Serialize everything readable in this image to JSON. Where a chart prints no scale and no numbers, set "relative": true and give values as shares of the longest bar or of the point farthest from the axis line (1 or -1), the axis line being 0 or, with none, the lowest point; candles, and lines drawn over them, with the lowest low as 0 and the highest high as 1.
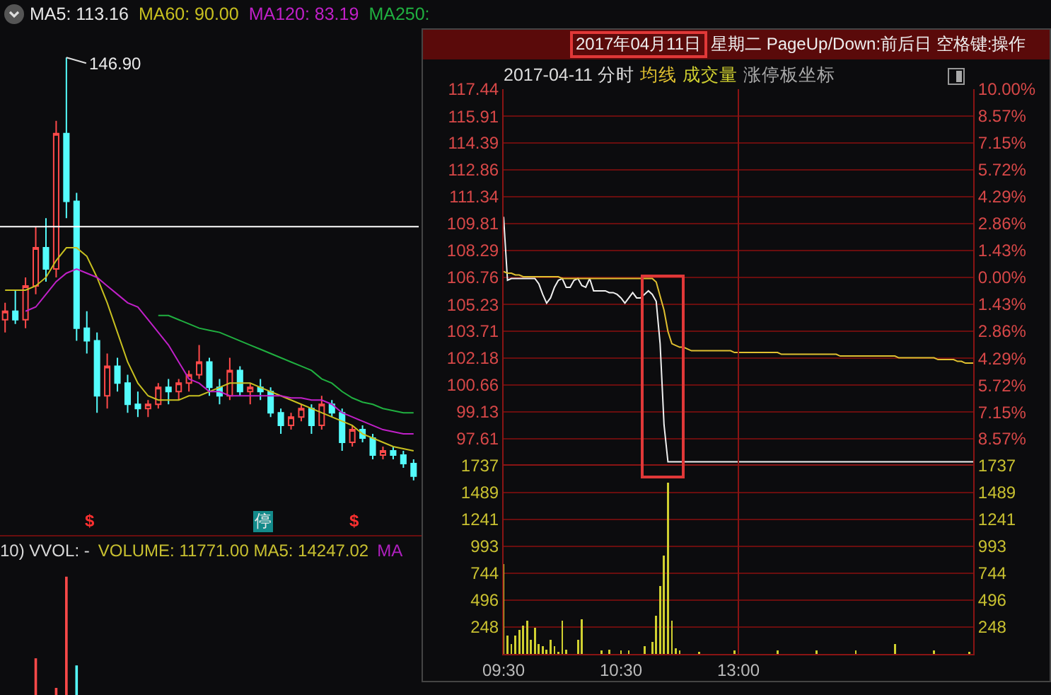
{
  "chart_data": [
    {
      "type": "candlestick",
      "title": "MA5: 113.16",
      "relative": true,
      "categories": [
        null,
        null,
        null,
        null,
        null,
        null,
        null,
        null,
        null,
        null,
        null,
        null,
        null,
        null,
        null,
        null,
        null,
        null,
        null,
        null,
        null,
        null,
        null,
        null,
        null,
        null,
        null,
        null,
        null,
        null,
        null,
        null,
        null,
        null,
        null,
        null,
        null,
        null,
        null,
        null,
        null
      ],
      "ohlc": [
        [
          0.38,
          0.42,
          0.35,
          0.4
        ],
        [
          0.4,
          0.45,
          0.37,
          0.38
        ],
        [
          0.38,
          0.48,
          0.36,
          0.46
        ],
        [
          0.46,
          0.6,
          0.44,
          0.55
        ],
        [
          0.55,
          0.62,
          0.47,
          0.5
        ],
        [
          0.5,
          0.85,
          0.48,
          0.82
        ],
        [
          0.82,
          1.0,
          0.62,
          0.66
        ],
        [
          0.66,
          0.68,
          0.33,
          0.36
        ],
        [
          0.36,
          0.4,
          0.3,
          0.33
        ],
        [
          0.33,
          0.35,
          0.16,
          0.2
        ],
        [
          0.2,
          0.3,
          0.17,
          0.27
        ],
        [
          0.27,
          0.29,
          0.21,
          0.23
        ],
        [
          0.23,
          0.25,
          0.16,
          0.18
        ],
        [
          0.18,
          0.21,
          0.15,
          0.17
        ],
        [
          0.17,
          0.19,
          0.15,
          0.18
        ],
        [
          0.18,
          0.23,
          0.17,
          0.22
        ],
        [
          0.22,
          0.24,
          0.18,
          0.21
        ],
        [
          0.21,
          0.24,
          0.19,
          0.23
        ],
        [
          0.23,
          0.26,
          0.21,
          0.25
        ],
        [
          0.25,
          0.32,
          0.24,
          0.28
        ],
        [
          0.28,
          0.29,
          0.2,
          0.22
        ],
        [
          0.22,
          0.24,
          0.18,
          0.2
        ],
        [
          0.2,
          0.29,
          0.19,
          0.26
        ],
        [
          0.26,
          0.27,
          0.2,
          0.21
        ],
        [
          0.21,
          0.23,
          0.18,
          0.22
        ],
        [
          0.22,
          0.24,
          0.19,
          0.21
        ],
        [
          0.21,
          0.22,
          0.15,
          0.16
        ],
        [
          0.16,
          0.17,
          0.11,
          0.13
        ],
        [
          0.13,
          0.16,
          0.12,
          0.15
        ],
        [
          0.15,
          0.18,
          0.14,
          0.17
        ],
        [
          0.17,
          0.18,
          0.11,
          0.13
        ],
        [
          0.13,
          0.2,
          0.12,
          0.18
        ],
        [
          0.18,
          0.19,
          0.15,
          0.16
        ],
        [
          0.16,
          0.17,
          0.07,
          0.09
        ],
        [
          0.09,
          0.13,
          0.08,
          0.12
        ],
        [
          0.12,
          0.13,
          0.09,
          0.1
        ],
        [
          0.1,
          0.11,
          0.05,
          0.06
        ],
        [
          0.06,
          0.08,
          0.05,
          0.07
        ],
        [
          0.07,
          0.08,
          0.05,
          0.06
        ],
        [
          0.06,
          0.07,
          0.03,
          0.04
        ],
        [
          0.04,
          0.05,
          0.0,
          0.01
        ]
      ],
      "colors": [
        "#ff4a4a",
        "#54fcfc",
        "#ff4a4a",
        "#ff4a4a",
        "#54fcfc",
        "#ff4a4a",
        "#54fcfc",
        "#54fcfc",
        "#54fcfc",
        "#54fcfc",
        "#ff4a4a",
        "#54fcfc",
        "#54fcfc",
        "#54fcfc",
        "#ff4a4a",
        "#ff4a4a",
        "#54fcfc",
        "#ff4a4a",
        "#ff4a4a",
        "#ff4a4a",
        "#54fcfc",
        "#54fcfc",
        "#ff4a4a",
        "#54fcfc",
        "#ff4a4a",
        "#54fcfc",
        "#54fcfc",
        "#54fcfc",
        "#ff4a4a",
        "#ff4a4a",
        "#54fcfc",
        "#ff4a4a",
        "#54fcfc",
        "#54fcfc",
        "#ff4a4a",
        "#54fcfc",
        "#54fcfc",
        "#ff4a4a",
        "#54fcfc",
        "#54fcfc",
        "#54fcfc"
      ],
      "series": [
        {
          "type": "line",
          "name": "MA60: 90.00",
          "color": "#c8c020",
          "values": [
            0.45,
            0.45,
            0.45,
            0.46,
            0.48,
            0.52,
            0.55,
            0.55,
            0.53,
            0.48,
            0.42,
            0.35,
            0.28,
            0.23,
            0.2,
            0.19,
            0.19,
            0.19,
            0.2,
            0.2,
            0.21,
            0.22,
            0.23,
            0.23,
            0.23,
            0.22,
            0.21,
            0.2,
            0.19,
            0.18,
            0.17,
            0.16,
            0.15,
            0.14,
            0.13,
            0.11,
            0.1,
            0.09,
            0.08,
            0.075,
            0.07
          ]
        },
        {
          "type": "line",
          "name": "MA120: 83.19",
          "color": "#c020c8",
          "values": [
            null,
            null,
            0.4,
            0.41,
            0.44,
            0.47,
            0.49,
            0.5,
            0.49,
            0.48,
            0.46,
            0.44,
            0.42,
            0.41,
            0.38,
            0.35,
            0.32,
            0.28,
            0.24,
            0.23,
            0.21,
            0.21,
            0.2,
            0.2,
            0.2,
            0.2,
            0.2,
            0.2,
            0.195,
            0.195,
            0.19,
            0.19,
            0.18,
            0.16,
            0.15,
            0.14,
            0.13,
            0.12,
            0.115,
            0.11,
            0.11
          ]
        },
        {
          "type": "line",
          "name": "MA250:",
          "color": "#20b040",
          "values": [
            null,
            null,
            null,
            null,
            null,
            null,
            null,
            null,
            null,
            null,
            null,
            null,
            null,
            null,
            null,
            0.39,
            0.39,
            0.38,
            0.37,
            0.36,
            0.355,
            0.35,
            0.34,
            0.33,
            0.32,
            0.31,
            0.3,
            0.29,
            0.28,
            0.27,
            0.26,
            0.24,
            0.23,
            0.21,
            0.195,
            0.185,
            0.18,
            0.17,
            0.165,
            0.16,
            0.16
          ]
        }
      ],
      "ref_lines": [
        {
          "axis": "y",
          "value": 0.6,
          "color": "#ffffff"
        }
      ],
      "annotations": [
        "146.90",
        "$",
        "停",
        "$"
      ]
    },
    {
      "type": "line",
      "title": "2017年04月11日 星期二 PageUp/Down:前后日 空格键:操作",
      "subtitle": "2017-04-11 分时",
      "tick_labels": "y",
      "categories": [
        "09:30",
        null,
        null,
        null,
        null,
        null,
        null,
        null,
        null,
        null,
        null,
        null,
        null,
        null,
        null,
        null,
        null,
        null,
        null,
        null,
        null,
        null,
        null,
        null,
        null,
        null,
        null,
        null,
        null,
        null,
        "10:30",
        null,
        null,
        null,
        null,
        null,
        null,
        null,
        null,
        null,
        null,
        null,
        null,
        null,
        null,
        null,
        null,
        null,
        null,
        null,
        null,
        null,
        null,
        null,
        null,
        null,
        null,
        null,
        null,
        null,
        "13:00",
        null,
        null,
        null,
        null,
        null,
        null,
        null,
        null,
        null,
        null,
        null,
        null,
        null,
        null,
        null,
        null,
        null,
        null,
        null,
        null,
        null,
        null,
        null,
        null,
        null,
        null,
        null,
        null,
        null,
        null,
        null,
        null,
        null,
        null,
        null,
        null,
        null,
        null,
        null,
        null,
        null,
        null,
        null,
        null,
        null,
        null,
        null,
        null,
        null,
        null,
        null,
        null,
        null,
        null,
        null,
        null,
        null,
        null,
        null,
        null
      ],
      "ylim": [
        96.08,
        117.44
      ],
      "yticks": [
        97.61,
        99.13,
        100.66,
        102.18,
        103.71,
        105.23,
        106.76,
        108.29,
        109.81,
        111.34,
        112.86,
        114.39,
        115.91,
        117.44
      ],
      "y2lim": [
        -10,
        10
      ],
      "y2ticks": [
        {
          "value": -8.57,
          "label": "8.57%"
        },
        {
          "value": -7.15,
          "label": "7.15%"
        },
        {
          "value": -5.72,
          "label": "5.72%"
        },
        {
          "value": -4.29,
          "label": "4.29%"
        },
        {
          "value": -2.86,
          "label": "2.86%"
        },
        {
          "value": -1.43,
          "label": "1.43%"
        },
        {
          "value": 0,
          "label": "0.00%"
        },
        {
          "value": 1.43,
          "label": "1.43%"
        },
        {
          "value": 2.86,
          "label": "2.86%"
        },
        {
          "value": 4.29,
          "label": "4.29%"
        },
        {
          "value": 5.72,
          "label": "5.72%"
        },
        {
          "value": 7.15,
          "label": "7.15%"
        },
        {
          "value": 8.57,
          "label": "8.57%"
        },
        {
          "value": 10,
          "label": "10.00%"
        }
      ],
      "grid": "y",
      "ref_lines": [
        {
          "axis": "x",
          "value": "13:00",
          "color": "#8a1414"
        }
      ],
      "series": [
        {
          "type": "line",
          "color": "#f0f0f0",
          "values": [
            110.2,
            106.6,
            106.7,
            106.7,
            106.7,
            106.7,
            106.7,
            106.7,
            106.7,
            106.4,
            105.8,
            105.3,
            105.6,
            106.2,
            106.6,
            106.7,
            106.2,
            106.2,
            106.6,
            106.7,
            106.3,
            106.2,
            106.7,
            106.0,
            106.0,
            106.0,
            106.0,
            105.9,
            105.9,
            105.8,
            105.6,
            105.3,
            105.6,
            105.9,
            105.6,
            105.6,
            105.8,
            106.0,
            105.8,
            105.4,
            103.0,
            98.4,
            96.3,
            96.3,
            96.3,
            96.3,
            96.3,
            96.3,
            96.3,
            96.3,
            96.3,
            96.3,
            96.3,
            96.3,
            96.3,
            96.3,
            96.3,
            96.3,
            96.3,
            96.3,
            96.3,
            96.3,
            96.3,
            96.3,
            96.3,
            96.3,
            96.3,
            96.3,
            96.3,
            96.3,
            96.3,
            96.3,
            96.3,
            96.3,
            96.3,
            96.3,
            96.3,
            96.3,
            96.3,
            96.3,
            96.3,
            96.3,
            96.3,
            96.3,
            96.3,
            96.3,
            96.3,
            96.3,
            96.3,
            96.3,
            96.3,
            96.3,
            96.3,
            96.3,
            96.3,
            96.3,
            96.3,
            96.3,
            96.3,
            96.3,
            96.3,
            96.3,
            96.3,
            96.3,
            96.3,
            96.3,
            96.3,
            96.3,
            96.3,
            96.3,
            96.3,
            96.3,
            96.3,
            96.3,
            96.3,
            96.3,
            96.3,
            96.3,
            96.3,
            96.3,
            96.3
          ]
        },
        {
          "type": "line",
          "name": "均线",
          "color": "#e0c030",
          "values": [
            107.1,
            107.0,
            107.0,
            106.9,
            106.9,
            106.8,
            106.8,
            106.8,
            106.8,
            106.8,
            106.8,
            106.8,
            106.8,
            106.8,
            106.8,
            106.7,
            106.7,
            106.7,
            106.7,
            106.7,
            106.7,
            106.7,
            106.7,
            106.7,
            106.7,
            106.7,
            106.7,
            106.7,
            106.7,
            106.7,
            106.7,
            106.7,
            106.7,
            106.7,
            106.7,
            106.7,
            106.7,
            106.7,
            106.7,
            106.5,
            105.7,
            104.9,
            103.7,
            103.0,
            102.9,
            102.8,
            102.8,
            102.7,
            102.6,
            102.6,
            102.6,
            102.6,
            102.6,
            102.6,
            102.6,
            102.6,
            102.6,
            102.6,
            102.6,
            102.5,
            102.5,
            102.5,
            102.5,
            102.5,
            102.5,
            102.5,
            102.5,
            102.5,
            102.5,
            102.5,
            102.5,
            102.4,
            102.4,
            102.4,
            102.4,
            102.4,
            102.4,
            102.4,
            102.4,
            102.4,
            102.4,
            102.4,
            102.4,
            102.4,
            102.4,
            102.4,
            102.3,
            102.3,
            102.3,
            102.3,
            102.3,
            102.3,
            102.3,
            102.3,
            102.3,
            102.3,
            102.3,
            102.3,
            102.3,
            102.3,
            102.3,
            102.2,
            102.2,
            102.2,
            102.2,
            102.2,
            102.2,
            102.2,
            102.2,
            102.2,
            102.2,
            102.1,
            102.1,
            102.1,
            102.1,
            102.1,
            102.0,
            102.0,
            101.9,
            101.9,
            101.9
          ]
        }
      ]
    },
    {
      "type": "bar",
      "categories": [
        "09:30",
        null,
        null,
        null,
        null,
        null,
        null,
        null,
        null,
        null,
        null,
        null,
        null,
        null,
        null,
        null,
        null,
        null,
        null,
        null,
        null,
        null,
        null,
        null,
        null,
        null,
        null,
        null,
        null,
        null,
        "10:30",
        null,
        null,
        null,
        null,
        null,
        null,
        null,
        null,
        null,
        null,
        null,
        null,
        null,
        null,
        null,
        null,
        null,
        null,
        null,
        null,
        null,
        null,
        null,
        null,
        null,
        null,
        null,
        null,
        null,
        "13:00",
        null,
        null,
        null,
        null,
        null,
        null,
        null,
        null,
        null,
        null,
        null,
        null,
        null,
        null,
        null,
        null,
        null,
        null,
        null,
        null,
        null,
        null,
        null,
        null,
        null,
        null,
        null,
        null,
        null,
        null,
        null,
        null,
        null,
        null,
        null,
        null,
        null,
        null,
        null,
        null,
        null,
        null,
        null,
        null,
        null,
        null,
        null,
        null,
        null,
        null,
        null,
        null,
        null,
        null,
        null,
        null,
        null,
        null,
        null,
        null
      ],
      "ylim": [
        0,
        1737
      ],
      "yticks": [
        248,
        496,
        744,
        993,
        1241,
        1489,
        1737
      ],
      "y2lim": [
        0,
        1737
      ],
      "y2ticks": [
        248,
        496,
        744,
        993,
        1241,
        1489,
        1737
      ],
      "grid": "y",
      "ref_lines": [
        {
          "axis": "x",
          "value": "13:00",
          "color": "#8a1414"
        }
      ],
      "annotations": [
        "涨停板坐标"
      ],
      "series": [
        {
          "type": "bar",
          "name": "成交量",
          "color": "#d0d030",
          "values": [
            830,
            170,
            90,
            170,
            220,
            260,
            310,
            130,
            240,
            90,
            70,
            40,
            130,
            70,
            20,
            310,
            40,
            null,
            null,
            130,
            320,
            null,
            null,
            null,
            null,
            30,
            null,
            40,
            null,
            null,
            30,
            null,
            30,
            null,
            null,
            null,
            70,
            null,
            110,
            350,
            630,
            910,
            1580,
            310,
            50,
            30,
            null,
            null,
            null,
            null,
            20,
            null,
            null,
            null,
            null,
            null,
            null,
            null,
            null,
            30,
            null,
            null,
            null,
            null,
            null,
            null,
            null,
            null,
            null,
            null,
            30,
            null,
            null,
            null,
            null,
            null,
            null,
            null,
            null,
            null,
            30,
            null,
            null,
            null,
            null,
            null,
            null,
            null,
            null,
            null,
            30,
            null,
            null,
            null,
            null,
            null,
            null,
            null,
            null,
            null,
            90,
            null,
            null,
            null,
            null,
            null,
            null,
            null,
            null,
            null,
            30,
            null,
            null,
            null,
            null,
            null,
            null,
            null,
            null,
            20,
            null
          ]
        }
      ]
    },
    {
      "type": "bar",
      "relative": true,
      "categories": [
        null,
        null,
        null,
        null,
        null,
        null,
        null,
        null,
        null,
        null,
        null,
        null,
        null,
        null,
        null,
        null,
        null,
        null,
        null,
        null,
        null,
        null,
        null,
        null,
        null,
        null,
        null,
        null,
        null,
        null,
        null,
        null,
        null,
        null,
        null,
        null,
        null,
        null,
        null,
        null,
        null
      ],
      "values": [
        null,
        null,
        null,
        0.31,
        null,
        0.06,
        1.0,
        0.25,
        null,
        null,
        null,
        null,
        null,
        null,
        null,
        null,
        null,
        null,
        null,
        null,
        null,
        null,
        null,
        null,
        null,
        null,
        null,
        null,
        null,
        null,
        null,
        null,
        null,
        null,
        null,
        null,
        null,
        null,
        null,
        null,
        null
      ],
      "colors": [
        "#ff4a4a",
        "#ff4a4a",
        "#ff4a4a",
        "#ff4a4a",
        "#ff4a4a",
        "#ff4a4a",
        "#ff4a4a",
        "#54fcfc",
        "#ff4a4a",
        "#ff4a4a",
        "#ff4a4a",
        "#ff4a4a",
        "#ff4a4a",
        "#ff4a4a",
        "#ff4a4a",
        "#ff4a4a",
        "#ff4a4a",
        "#ff4a4a",
        "#ff4a4a",
        "#ff4a4a",
        "#ff4a4a",
        "#ff4a4a",
        "#ff4a4a",
        "#ff4a4a",
        "#ff4a4a",
        "#ff4a4a",
        "#ff4a4a",
        "#ff4a4a",
        "#ff4a4a",
        "#ff4a4a",
        "#ff4a4a",
        "#ff4a4a",
        "#ff4a4a",
        "#ff4a4a",
        "#ff4a4a",
        "#ff4a4a",
        "#ff4a4a",
        "#ff4a4a",
        "#ff4a4a",
        "#ff4a4a",
        "#ff4a4a"
      ],
      "annotations": [
        "10) VVOL: -",
        "VOLUME: 11771.00  MA5: 14247.02",
        "MA"
      ]
    }
  ]
}
